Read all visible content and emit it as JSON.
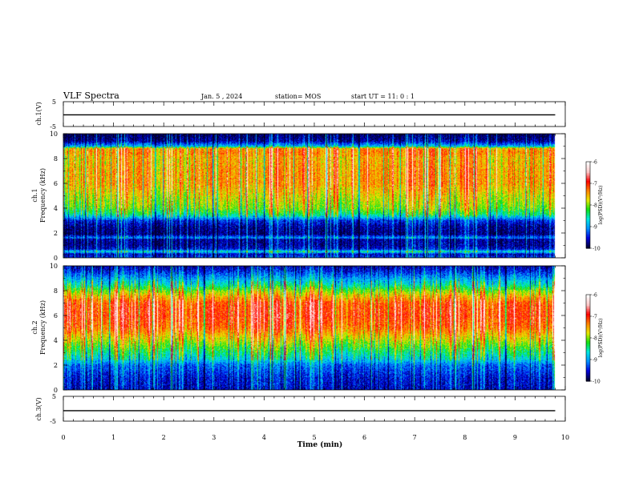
{
  "header": {
    "title": "VLF Spectra",
    "date": "Jan. 5 , 2024",
    "station": "station= MOS",
    "start_ut": "start UT =  11: 0  : 1"
  },
  "chart_data": [
    {
      "id": "ch1-voltage",
      "type": "line",
      "ylabel": "ch.1(V)",
      "ylim": [
        -5,
        5
      ],
      "y_ticks": [
        "5",
        "-5"
      ],
      "x": [
        0,
        9.8
      ],
      "values": [
        -0.3,
        -0.3
      ]
    },
    {
      "id": "ch1-spectrogram",
      "type": "heatmap",
      "ylabel": "ch.1\nFrequency (kHz)",
      "ylim": [
        0,
        10
      ],
      "y_ticks": [
        "0",
        "2",
        "4",
        "6",
        "8",
        "10"
      ],
      "xlim": [
        0,
        10
      ],
      "data_end_min": 9.8,
      "profile_log_psd": [
        [
          0.0,
          -9.3
        ],
        [
          0.3,
          -9.6
        ],
        [
          0.5,
          -8.6
        ],
        [
          0.7,
          -9.5
        ],
        [
          1.0,
          -9.7
        ],
        [
          1.5,
          -9.7
        ],
        [
          1.6,
          -9.0
        ],
        [
          1.9,
          -9.8
        ],
        [
          2.5,
          -9.7
        ],
        [
          3.0,
          -9.4
        ],
        [
          3.5,
          -8.4
        ],
        [
          4.0,
          -8.0
        ],
        [
          5.0,
          -7.7
        ],
        [
          6.0,
          -7.4
        ],
        [
          7.0,
          -7.4
        ],
        [
          8.0,
          -7.5
        ],
        [
          8.5,
          -7.3
        ],
        [
          8.8,
          -7.4
        ],
        [
          9.0,
          -8.9
        ],
        [
          9.4,
          -9.7
        ],
        [
          10.0,
          -9.9
        ]
      ],
      "colorbar": {
        "label": "log(PSD)(V²/Hz)",
        "range": [
          -10,
          -6
        ],
        "tick_labels": [
          "-6",
          "-7",
          "-8",
          "-9",
          "-10"
        ]
      }
    },
    {
      "id": "ch2-spectrogram",
      "type": "heatmap",
      "ylabel": "ch.2\nFrequency (kHz)",
      "ylim": [
        0,
        10
      ],
      "y_ticks": [
        "0",
        "2",
        "4",
        "6",
        "8",
        "10"
      ],
      "xlim": [
        0,
        10
      ],
      "data_end_min": 9.8,
      "profile_log_psd": [
        [
          0.0,
          -9.6
        ],
        [
          1.0,
          -9.5
        ],
        [
          2.0,
          -9.2
        ],
        [
          2.5,
          -8.7
        ],
        [
          3.0,
          -8.4
        ],
        [
          3.5,
          -8.1
        ],
        [
          4.0,
          -7.8
        ],
        [
          5.0,
          -7.2
        ],
        [
          6.0,
          -7.0
        ],
        [
          7.0,
          -7.1
        ],
        [
          7.5,
          -7.5
        ],
        [
          8.0,
          -8.0
        ],
        [
          8.5,
          -8.6
        ],
        [
          9.0,
          -9.0
        ],
        [
          9.5,
          -9.4
        ],
        [
          10.0,
          -9.7
        ]
      ],
      "colorbar": {
        "label": "log(PSD)(V²/Hz)",
        "range": [
          -10,
          -6
        ],
        "tick_labels": [
          "-6",
          "-7",
          "-8",
          "-9",
          "-10"
        ]
      }
    },
    {
      "id": "ch3-voltage",
      "type": "line",
      "ylabel": "ch.3(V)",
      "ylim": [
        -5,
        5
      ],
      "y_ticks": [
        "5",
        "-5"
      ],
      "x": [
        0,
        9.8
      ],
      "values": [
        -0.8,
        -0.8
      ]
    }
  ],
  "x_axis": {
    "label": "Time (min)",
    "range": [
      0,
      10
    ],
    "tick_labels": [
      "0",
      "1",
      "2",
      "3",
      "4",
      "5",
      "6",
      "7",
      "8",
      "9",
      "10"
    ]
  },
  "colors": {
    "background": "#ffffff",
    "axes": "#000000",
    "colormap": [
      "#000033",
      "#0000dd",
      "#0090ff",
      "#00e8e0",
      "#10e010",
      "#e8e800",
      "#ff8000",
      "#ff0000",
      "#ffc8c8",
      "#ffffff"
    ]
  }
}
